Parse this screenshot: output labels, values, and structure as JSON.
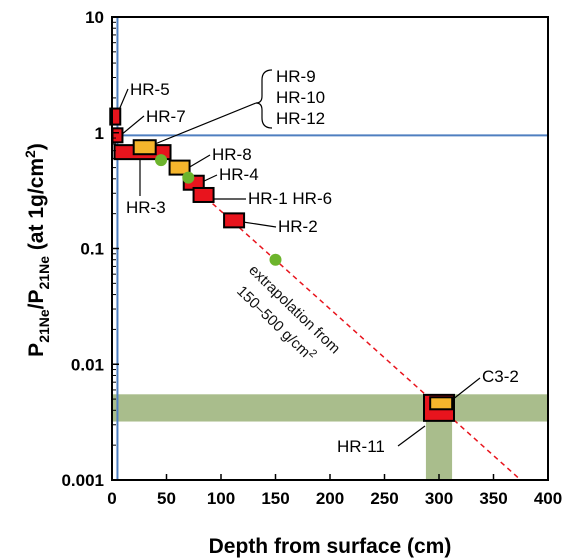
{
  "chart_data": {
    "type": "scatter",
    "xlabel": "Depth from surface (cm)",
    "ylabel": {
      "p1": "P",
      "p1_sub": "21Ne",
      "slash": "/P",
      "p2_sub": "21Ne",
      "tail": " (at 1g/cm",
      "sup": "2",
      "close": ")"
    },
    "xlim": [
      0,
      400
    ],
    "ylim": [
      0.001,
      10
    ],
    "yscale": "log",
    "x_ticks": [
      0,
      50,
      100,
      150,
      200,
      250,
      300,
      350,
      400
    ],
    "x_tick_labels": [
      "0",
      "50",
      "100",
      "150",
      "200",
      "250",
      "300",
      "350",
      "400"
    ],
    "y_ticks": [
      10,
      1,
      0.1,
      0.01,
      0.001
    ],
    "y_tick_labels": [
      "10",
      "1",
      "0.1",
      "0.01",
      "0.001"
    ],
    "series": [
      {
        "kind": "red-box",
        "points": [
          {
            "label": "HR-5",
            "x": 3,
            "y": 1.38
          },
          {
            "label": "HR-7",
            "x": 5,
            "y": 0.95
          },
          {
            "label": "HR-3",
            "x": 28,
            "y": 0.68
          },
          {
            "label": "HR-4",
            "x": 75,
            "y": 0.37
          },
          {
            "label": "HR-1 HR-6",
            "x": 84,
            "y": 0.29
          },
          {
            "label": "HR-2",
            "x": 112,
            "y": 0.175
          },
          {
            "label": "HR-11",
            "x": 300,
            "y": 0.0042
          }
        ]
      },
      {
        "kind": "orange-box",
        "points": [
          {
            "label": "HR-9 / HR-10 / HR-12",
            "x": 30,
            "y": 0.75
          },
          {
            "label": "HR-8",
            "x": 62,
            "y": 0.5
          },
          {
            "label": "C3-2",
            "x": 302,
            "y": 0.0046
          }
        ]
      },
      {
        "kind": "green-dot",
        "points": [
          {
            "x": 45,
            "y": 0.58
          },
          {
            "x": 70,
            "y": 0.41
          },
          {
            "x": 150,
            "y": 0.08
          }
        ]
      }
    ],
    "bracket_labels": [
      "HR-9",
      "HR-10",
      "HR-12"
    ],
    "reference_lines": {
      "vertical_x": 5,
      "horizontal_y": 0.95
    },
    "extrapolation": {
      "from": [
        80,
        0.31
      ],
      "to": [
        375,
        0.001
      ],
      "label_line1": "extrapolation from",
      "label_line2": "150–500 g/cm",
      "label_sup": "2"
    },
    "uncertainty_bands": {
      "horizontal": [
        0.0032,
        0.0055
      ],
      "vertical": [
        288,
        312
      ]
    }
  },
  "colors": {
    "red_box": "#e8141d",
    "orange_box": "#f5b52c",
    "green_dot": "#6cb42c",
    "blue_line": "#4f7fc0",
    "band": "#a9bd8c",
    "dashed": "#e8141d"
  }
}
